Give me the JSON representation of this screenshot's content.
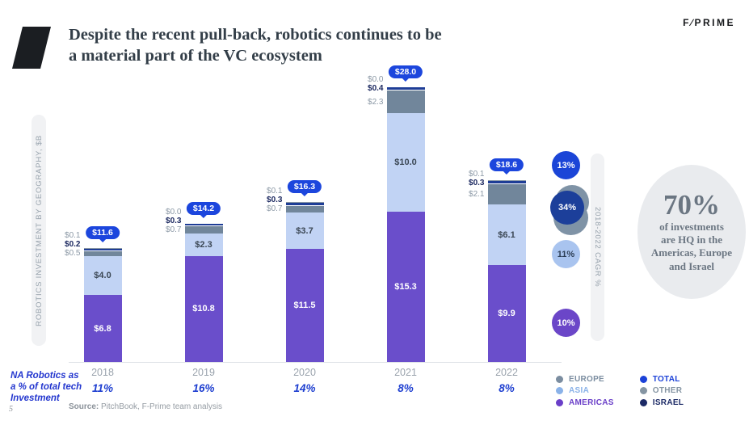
{
  "brand": "F∕PRIME",
  "page_number": "5",
  "title": {
    "line1": "Despite the recent pull-back, robotics continues to be",
    "line2": "a material part of the VC ecosystem"
  },
  "axis_pill_label": "ROBOTICS INVESTMENT BY GEOGRAPHY, $B",
  "cagr_pill_label": "2018-2022 CAGR %",
  "cagr_circles": [
    {
      "name": "total",
      "value": "13%",
      "color": "#1b45d7",
      "text_color": "#ffffff"
    },
    {
      "name": "israel-other",
      "value": "34%",
      "color": "#1c3f9a",
      "back_color": "#7f93a6",
      "text_color": "#ffffff"
    },
    {
      "name": "asia",
      "value": "11%",
      "color": "#a9c4ef",
      "text_color": "#2c3e55"
    },
    {
      "name": "americas",
      "value": "10%",
      "color": "#6b46c8",
      "text_color": "#ffffff"
    }
  ],
  "highlight": {
    "stat": "70%",
    "line1": "of investments",
    "line2": "are HQ in the",
    "line3": "Americas, Europe",
    "line4": "and Israel"
  },
  "na_note": {
    "line1": "NA Robotics as",
    "line2": "a % of total tech",
    "line3": "Investment"
  },
  "source": {
    "label": "Source:",
    "text": " PitchBook, F-Prime team analysis"
  },
  "legend": {
    "items": [
      {
        "label": "EUROPE",
        "color": "#7b8da0"
      },
      {
        "label": "ASIA",
        "color": "#8ab2e8"
      },
      {
        "label": "AMERICAS",
        "color": "#6a3fc8"
      },
      {
        "label": "TOTAL",
        "color": "#1b41d8"
      },
      {
        "label": "OTHER",
        "color": "#8595a3"
      },
      {
        "label": "ISRAEL",
        "color": "#1c2a66"
      }
    ]
  },
  "chart_data": {
    "type": "bar",
    "stacked": true,
    "title": "Robotics investment by geography, $B",
    "ylabel": "ROBOTICS INVESTMENT BY GEOGRAPHY, $B",
    "unit": "$B",
    "categories": [
      "2018",
      "2019",
      "2020",
      "2021",
      "2022"
    ],
    "totals": [
      11.6,
      14.2,
      16.3,
      28.0,
      18.6
    ],
    "total_labels": [
      "$11.6",
      "$14.2",
      "$16.3",
      "$28.0",
      "$18.6"
    ],
    "series": [
      {
        "name": "AMERICAS",
        "color": "#6a4ecb",
        "values": [
          6.8,
          10.8,
          11.5,
          15.3,
          9.9
        ],
        "labels": [
          "$6.8",
          "$10.8",
          "$11.5",
          "$15.3",
          "$9.9"
        ],
        "label_style": "inside-white"
      },
      {
        "name": "ASIA",
        "color": "#c1d3f4",
        "values": [
          4.0,
          2.3,
          3.7,
          10.0,
          6.1
        ],
        "labels": [
          "$4.0",
          "$2.3",
          "$3.7",
          "$10.0",
          "$6.1"
        ],
        "label_style": "inside-dark"
      },
      {
        "name": "EUROPE",
        "color": "#71869b",
        "values": [
          0.5,
          0.7,
          0.7,
          2.3,
          2.1
        ],
        "labels": [
          "$0.5",
          "$0.7",
          "$0.7",
          "$2.3",
          "$2.1"
        ],
        "label_style": "outside-gray"
      },
      {
        "name": "ISRAEL",
        "color": "#1e3d96",
        "values": [
          0.2,
          0.3,
          0.3,
          0.4,
          0.3
        ],
        "labels": [
          "$0.2",
          "$0.3",
          "$0.3",
          "$0.4",
          "$0.3"
        ],
        "label_style": "outside-navy"
      },
      {
        "name": "OTHER",
        "color": "#8a98a6",
        "values": [
          0.1,
          0.0,
          0.1,
          0.0,
          0.1
        ],
        "labels": [
          "$0.1",
          "$0.0",
          "$0.1",
          "$0.0",
          "$0.1"
        ],
        "label_style": "outside-gray"
      }
    ],
    "na_share": [
      "11%",
      "16%",
      "14%",
      "8%",
      "8%"
    ],
    "ylim": [
      0,
      30
    ],
    "gridlines": false,
    "legend_position": "bottom-right",
    "cagr_2018_2022": {
      "TOTAL": "13%",
      "ISRAEL_OTHER_EUROPE": "34%",
      "ASIA": "11%",
      "AMERICAS": "10%"
    }
  }
}
